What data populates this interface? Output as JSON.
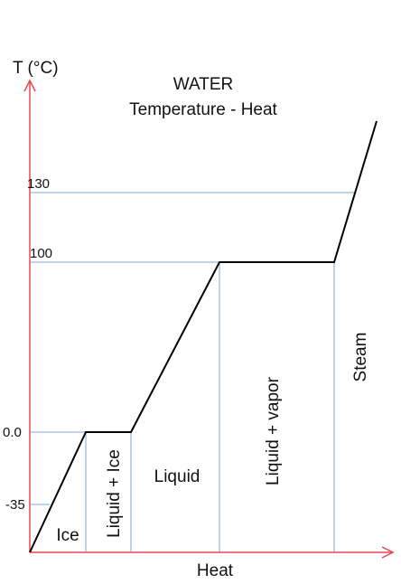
{
  "chart_data": {
    "type": "line",
    "title": "WATER",
    "subtitle": "Temperature - Heat",
    "xlabel": "Heat",
    "ylabel": "T (°C)",
    "y_ticks": [
      {
        "label": "130",
        "value": 130
      },
      {
        "label": "100",
        "value": 100
      },
      {
        "label": "0.0",
        "value": 0
      },
      {
        "label": "-35",
        "value": -35
      }
    ],
    "x_boundaries": [
      1,
      2,
      4,
      6.7
    ],
    "series": [
      {
        "x": [
          -0.2,
          1,
          2,
          4,
          6.7,
          7.7
        ],
        "y": [
          -60,
          0,
          0,
          100,
          100,
          155
        ]
      }
    ],
    "regions": [
      {
        "label": "Ice",
        "orientation": "horizontal"
      },
      {
        "label": "Liquid + Ice",
        "orientation": "vertical"
      },
      {
        "label": "Liquid",
        "orientation": "horizontal"
      },
      {
        "label": "Liquid + vapor",
        "orientation": "vertical"
      },
      {
        "label": "Steam",
        "orientation": "vertical"
      }
    ],
    "xlim": [
      -0.2,
      8.0
    ],
    "ylim": [
      -60,
      170
    ],
    "grid": false,
    "legend": "none",
    "colors": {
      "axis": "#e8484f",
      "guide": "#7fa6d6",
      "curve": "#000000",
      "text": "#111111"
    }
  }
}
